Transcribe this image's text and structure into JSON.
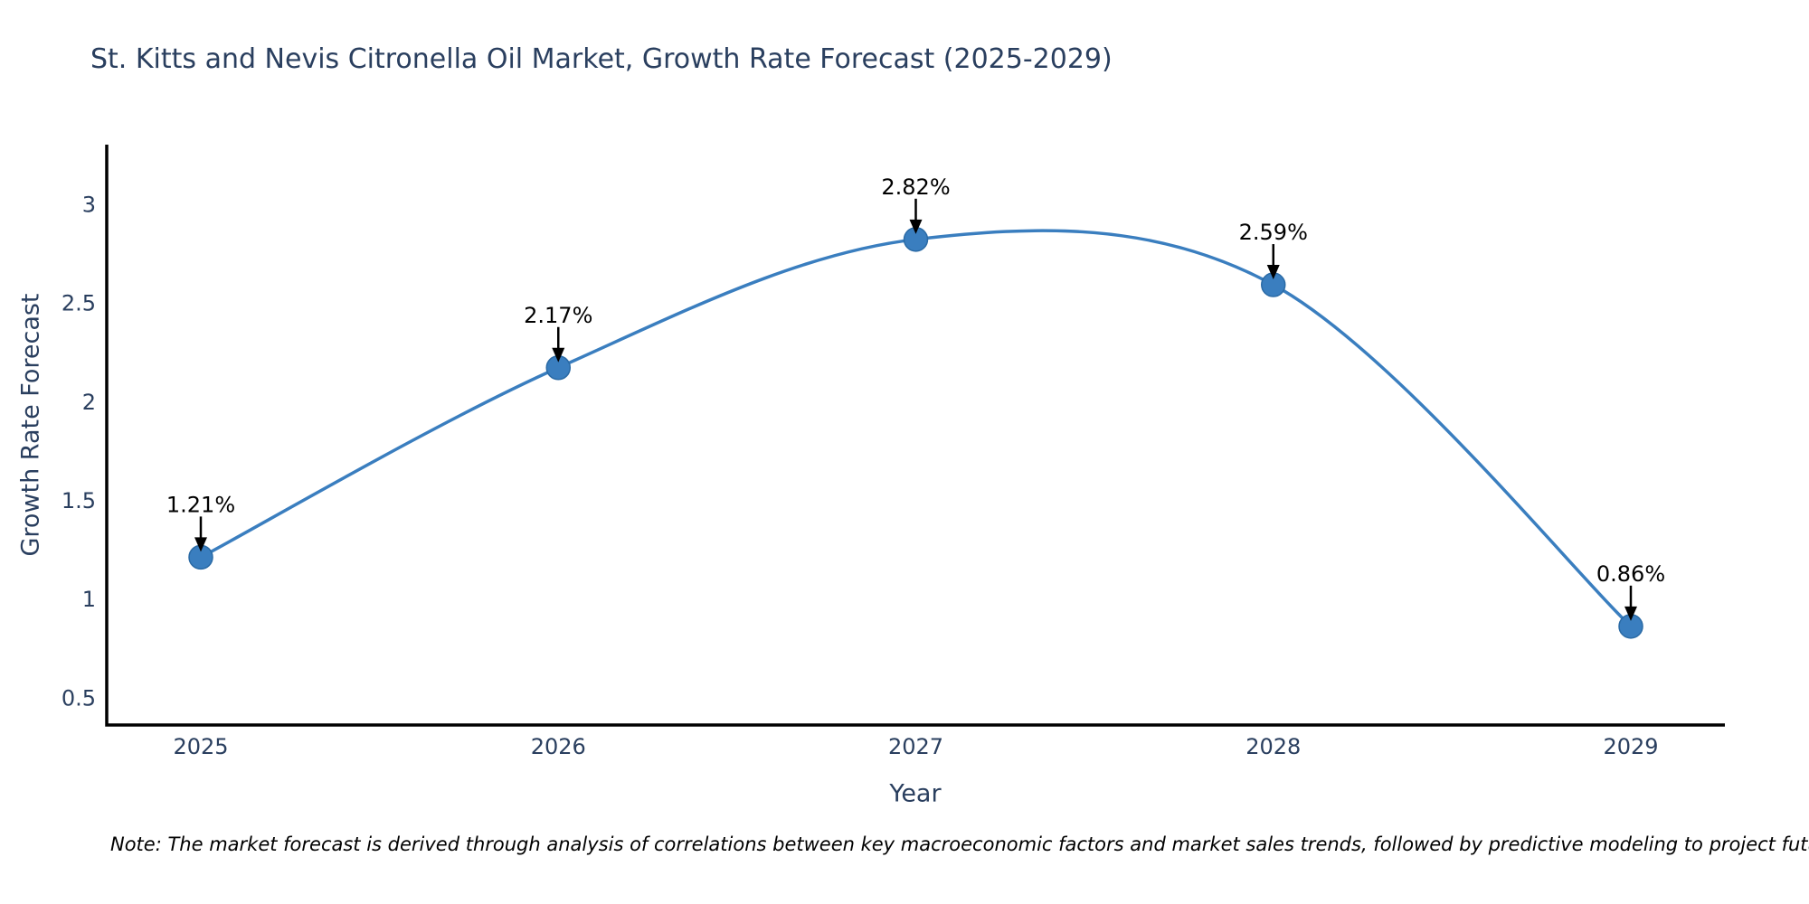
{
  "page": {
    "background": "#ffffff"
  },
  "header": {
    "title": "St. Kitts and Nevis Citronella Oil Market, Growth Rate Forecast (2025-2029)"
  },
  "footer": {
    "note": "Note: The market forecast is derived through analysis of correlations between key macroeconomic factors and market sales trends, followed by predictive modeling to project future sales"
  },
  "chart_data": {
    "type": "line",
    "title": "St. Kitts and Nevis Citronella Oil Market, Growth Rate Forecast (2025-2029)",
    "xlabel": "Year",
    "ylabel": "Growth Rate Forecast",
    "x": [
      2025,
      2026,
      2027,
      2028,
      2029
    ],
    "series": [
      {
        "name": "Growth Rate Forecast",
        "values": [
          1.21,
          2.17,
          2.82,
          2.59,
          0.86
        ],
        "point_labels": [
          "1.21%",
          "2.17%",
          "2.82%",
          "2.59%",
          "0.86%"
        ]
      }
    ],
    "line_shape": "spline",
    "markers_visible": true,
    "annotation_arrows": "down",
    "yticks": [
      0.5,
      1,
      1.5,
      2,
      2.5,
      3
    ],
    "ylim": [
      0.36,
      3.3
    ],
    "grid": false,
    "legend_position": "none",
    "colors": {
      "line": "#3a7ebf",
      "marker_fill": "#3a7ebf",
      "marker_edge": "#2a6aa5",
      "annotation_text": "#000000",
      "arrow": "#000000",
      "axis_line": "#000000",
      "tick_text": "#2a3f5f",
      "title_text": "#2a3f5f",
      "plot_background": "#ffffff"
    }
  }
}
